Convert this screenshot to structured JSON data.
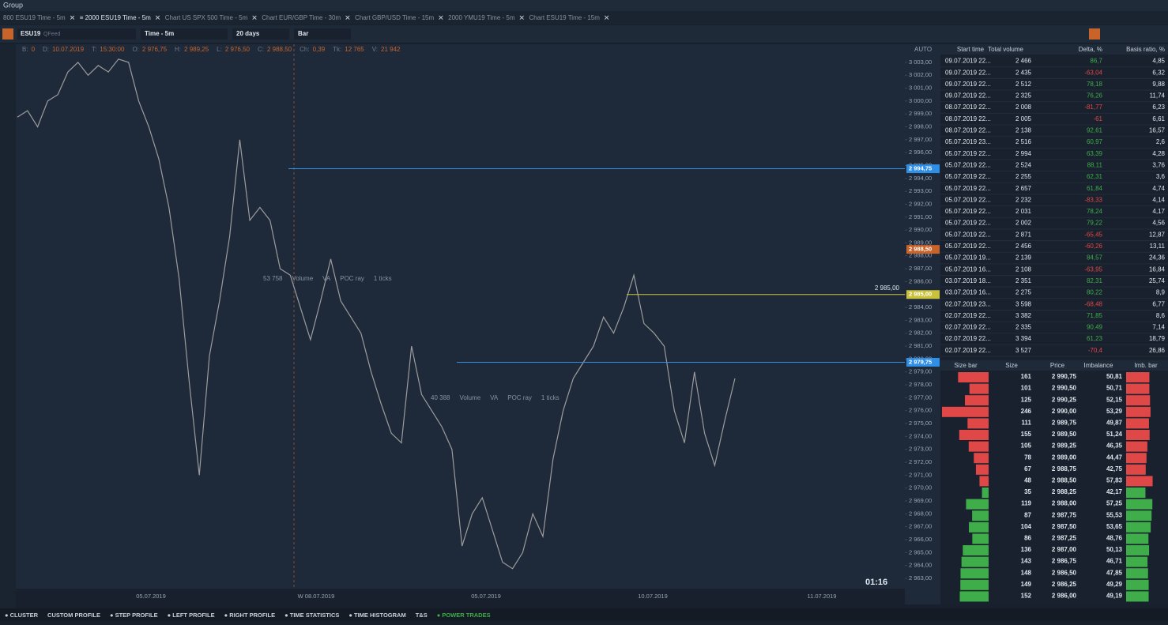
{
  "window": {
    "title": "Group"
  },
  "tabs": [
    "800 ESU19 Time - 5m",
    "≡ 2000 ESU19 Time - 5m",
    "Chart US SPX 500 Time - 5m",
    "Chart EUR/GBP Time - 30m",
    "Chart GBP/USD Time - 15m",
    "2000 YMU19 Time - 5m",
    "Chart ESU19 Time - 15m"
  ],
  "toolbar": {
    "symbol": "ESU19",
    "feed": "QFeed",
    "timeframe": "Time - 5m",
    "period": "20 days",
    "chart_type": "Bar"
  },
  "ohlc": [
    [
      "B:",
      "0"
    ],
    [
      "D:",
      "10.07.2019"
    ],
    [
      "T:",
      "15:30:00"
    ],
    [
      "O:",
      "2 976,75"
    ],
    [
      "H:",
      "2 989,25"
    ],
    [
      "L:",
      "2 976,50"
    ],
    [
      "C:",
      "2 988,50"
    ],
    [
      "Ch:",
      "0,39"
    ],
    [
      "Tk:",
      "12 765"
    ],
    [
      "V:",
      "21 942"
    ]
  ],
  "chart": {
    "axis_mode": "AUTO",
    "timer": "01:16",
    "ylim": [
      2962.2,
      3004.4
    ],
    "yticks": [
      {
        "value": 3003,
        "label": "3 003,00"
      },
      {
        "value": 3002,
        "label": "3 002,00"
      },
      {
        "value": 3001,
        "label": "3 001,00"
      },
      {
        "value": 3000,
        "label": "3 000,00"
      },
      {
        "value": 2999,
        "label": "2 999,00"
      },
      {
        "value": 2998,
        "label": "2 998,00"
      },
      {
        "value": 2997,
        "label": "2 997,00"
      },
      {
        "value": 2996,
        "label": "2 996,00"
      },
      {
        "value": 2995,
        "label": "2 995,00"
      },
      {
        "value": 2994,
        "label": "2 994,00"
      },
      {
        "value": 2993,
        "label": "2 993,00"
      },
      {
        "value": 2992,
        "label": "2 992,00"
      },
      {
        "value": 2991,
        "label": "2 991,00"
      },
      {
        "value": 2990,
        "label": "2 990,00"
      },
      {
        "value": 2989,
        "label": "2 989,00"
      },
      {
        "value": 2988,
        "label": "2 988,00"
      },
      {
        "value": 2987,
        "label": "2 987,00"
      },
      {
        "value": 2986,
        "label": "2 986,00"
      },
      {
        "value": 2985,
        "label": "2 985,00"
      },
      {
        "value": 2984,
        "label": "2 984,00"
      },
      {
        "value": 2983,
        "label": "2 983,00"
      },
      {
        "value": 2982,
        "label": "2 982,00"
      },
      {
        "value": 2981,
        "label": "2 981,00"
      },
      {
        "value": 2980,
        "label": "2 980,00"
      },
      {
        "value": 2979,
        "label": "2 979,00"
      },
      {
        "value": 2978,
        "label": "2 978,00"
      },
      {
        "value": 2977,
        "label": "2 977,00"
      },
      {
        "value": 2976,
        "label": "2 976,00"
      },
      {
        "value": 2975,
        "label": "2 975,00"
      },
      {
        "value": 2974,
        "label": "2 974,00"
      },
      {
        "value": 2973,
        "label": "2 973,00"
      },
      {
        "value": 2972,
        "label": "2 972,00"
      },
      {
        "value": 2971,
        "label": "2 971,00"
      },
      {
        "value": 2970,
        "label": "2 970,00"
      },
      {
        "value": 2969,
        "label": "2 969,00"
      },
      {
        "value": 2968,
        "label": "2 968,00"
      },
      {
        "value": 2967,
        "label": "2 967,00"
      },
      {
        "value": 2966,
        "label": "2 966,00"
      },
      {
        "value": 2965,
        "label": "2 965,00"
      },
      {
        "value": 2964,
        "label": "2 964,00"
      },
      {
        "value": 2963,
        "label": "2 963,00"
      }
    ],
    "xticks": [
      "05.07.2019",
      "W 08.07.2019",
      "05.07.2019",
      "10.07.2019",
      "11.07.2019"
    ],
    "price_lines": [
      {
        "value": 2994.75,
        "label": "2 994,75",
        "color": "#2f8fe6"
      },
      {
        "value": 2988.5,
        "label": "2 988,50",
        "color": "#c8632a"
      },
      {
        "value": 2979.75,
        "label": "2 979,75",
        "color": "#2f8fe6"
      },
      {
        "value": 2985,
        "label": "2 985,00",
        "color": "#c9c23a"
      }
    ],
    "overlays": [
      [
        "53 758",
        "Volume",
        "VA",
        "POC ray",
        "1 ticks"
      ],
      [
        "40 388",
        "Volume",
        "VA",
        "POC ray",
        "1 ticks"
      ]
    ],
    "price": [
      2998.75,
      2999.25,
      2998,
      3000,
      3000.5,
      3002.25,
      3003,
      3002,
      3002.75,
      3002.25,
      3003.25,
      3003,
      3000,
      2998,
      2995.5,
      2991.75,
      2986.25,
      2978.25,
      2971,
      2980.25,
      2984.5,
      2989.5,
      2997,
      2990.75,
      2991.75,
      2990.75,
      2987,
      2986.5,
      2984,
      2981.5,
      2984.5,
      2987.75,
      2984.5,
      2983.25,
      2982,
      2979,
      2976.5,
      2974.25,
      2973.5,
      2981,
      2977.25,
      2976,
      2974.75,
      2973,
      2965.5,
      2968,
      2969.25,
      2966.75,
      2964.25,
      2963.75,
      2965,
      2968,
      2966.25,
      2972.25,
      2976,
      2978.5,
      2979.75,
      2981,
      2983.25,
      2982,
      2984,
      2986.5,
      2982.75,
      2982,
      2981,
      2976,
      2973.5,
      2979,
      2974.25,
      2971.75,
      2975.25,
      2978.5
    ]
  },
  "volume_table": {
    "columns": [
      "Start time",
      "Total volume",
      "Delta, %",
      "Basis ratio, %"
    ],
    "rows": [
      [
        "09.07.2019 22...",
        "2 466",
        "86,7",
        "4,85"
      ],
      [
        "09.07.2019 22...",
        "2 435",
        "-63,04",
        "6,32"
      ],
      [
        "09.07.2019 22...",
        "2 512",
        "78,18",
        "9,88"
      ],
      [
        "09.07.2019 22...",
        "2 325",
        "76,26",
        "11,74"
      ],
      [
        "08.07.2019 22...",
        "2 008",
        "-81,77",
        "6,23"
      ],
      [
        "08.07.2019 22...",
        "2 005",
        "-61",
        "6,61"
      ],
      [
        "08.07.2019 22...",
        "2 138",
        "92,61",
        "16,57"
      ],
      [
        "05.07.2019 23...",
        "2 516",
        "60,97",
        "2,6"
      ],
      [
        "05.07.2019 22...",
        "2 994",
        "63,39",
        "4,28"
      ],
      [
        "05.07.2019 22...",
        "2 524",
        "88,11",
        "3,76"
      ],
      [
        "05.07.2019 22...",
        "2 255",
        "62,31",
        "3,6"
      ],
      [
        "05.07.2019 22...",
        "2 657",
        "61,84",
        "4,74"
      ],
      [
        "05.07.2019 22...",
        "2 232",
        "-83,33",
        "4,14"
      ],
      [
        "05.07.2019 22...",
        "2 031",
        "78,24",
        "4,17"
      ],
      [
        "05.07.2019 22...",
        "2 002",
        "79,22",
        "4,56"
      ],
      [
        "05.07.2019 22...",
        "2 871",
        "-65,45",
        "12,87"
      ],
      [
        "05.07.2019 22...",
        "2 456",
        "-60,26",
        "13,11"
      ],
      [
        "05.07.2019 19...",
        "2 139",
        "84,57",
        "24,36"
      ],
      [
        "05.07.2019 16...",
        "2 108",
        "-63,95",
        "16,84"
      ],
      [
        "03.07.2019 18...",
        "2 351",
        "82,31",
        "25,74"
      ],
      [
        "03.07.2019 16...",
        "2 275",
        "80,22",
        "8,9"
      ],
      [
        "02.07.2019 23...",
        "3 598",
        "-68,48",
        "6,77"
      ],
      [
        "02.07.2019 22...",
        "3 382",
        "71,85",
        "8,6"
      ],
      [
        "02.07.2019 22...",
        "2 335",
        "90,49",
        "7,14"
      ],
      [
        "02.07.2019 22...",
        "3 394",
        "61,23",
        "18,79"
      ],
      [
        "02.07.2019 22...",
        "3 527",
        "-70,4",
        "26,86"
      ]
    ]
  },
  "profile_table": {
    "columns": [
      "Size bar",
      "Size",
      "Price",
      "Imbalance",
      "Imb. bar"
    ],
    "rows": [
      {
        "size": 161,
        "price": "2 990,75",
        "imbalance": {
          "value": 50.81,
          "label": "50,81"
        },
        "color": "#e04848"
      },
      {
        "size": 101,
        "price": "2 990,50",
        "imbalance": {
          "value": 50.71,
          "label": "50,71"
        },
        "color": "#e04848"
      },
      {
        "size": 125,
        "price": "2 990,25",
        "imbalance": {
          "value": 52.15,
          "label": "52,15"
        },
        "color": "#e04848"
      },
      {
        "size": 246,
        "price": "2 990,00",
        "imbalance": {
          "value": 53.29,
          "label": "53,29"
        },
        "color": "#e04848"
      },
      {
        "size": 111,
        "price": "2 989,75",
        "imbalance": {
          "value": 49.87,
          "label": "49,87"
        },
        "color": "#e04848"
      },
      {
        "size": 155,
        "price": "2 989,50",
        "imbalance": {
          "value": 51.24,
          "label": "51,24"
        },
        "color": "#e04848"
      },
      {
        "size": 105,
        "price": "2 989,25",
        "imbalance": {
          "value": 46.35,
          "label": "46,35"
        },
        "color": "#e04848"
      },
      {
        "size": 78,
        "price": "2 989,00",
        "imbalance": {
          "value": 44.47,
          "label": "44,47"
        },
        "color": "#e04848"
      },
      {
        "size": 67,
        "price": "2 988,75",
        "imbalance": {
          "value": 42.75,
          "label": "42,75"
        },
        "color": "#e04848"
      },
      {
        "size": 48,
        "price": "2 988,50",
        "imbalance": {
          "value": 57.83,
          "label": "57,83"
        },
        "color": "#e04848"
      },
      {
        "size": 35,
        "price": "2 988,25",
        "imbalance": {
          "value": 42.17,
          "label": "42,17"
        },
        "color": "#3fae4a"
      },
      {
        "size": 119,
        "price": "2 988,00",
        "imbalance": {
          "value": 57.25,
          "label": "57,25"
        },
        "color": "#3fae4a"
      },
      {
        "size": 87,
        "price": "2 987,75",
        "imbalance": {
          "value": 55.53,
          "label": "55,53"
        },
        "color": "#3fae4a"
      },
      {
        "size": 104,
        "price": "2 987,50",
        "imbalance": {
          "value": 53.65,
          "label": "53,65"
        },
        "color": "#3fae4a"
      },
      {
        "size": 86,
        "price": "2 987,25",
        "imbalance": {
          "value": 48.76,
          "label": "48,76"
        },
        "color": "#3fae4a"
      },
      {
        "size": 136,
        "price": "2 987,00",
        "imbalance": {
          "value": 50.13,
          "label": "50,13"
        },
        "color": "#3fae4a"
      },
      {
        "size": 143,
        "price": "2 986,75",
        "imbalance": {
          "value": 46.71,
          "label": "46,71"
        },
        "color": "#3fae4a"
      },
      {
        "size": 148,
        "price": "2 986,50",
        "imbalance": {
          "value": 47.85,
          "label": "47,85"
        },
        "color": "#3fae4a"
      },
      {
        "size": 149,
        "price": "2 986,25",
        "imbalance": {
          "value": 49.29,
          "label": "49,29"
        },
        "color": "#3fae4a"
      },
      {
        "size": 152,
        "price": "2 986,00",
        "imbalance": {
          "value": 49.19,
          "label": "49,19"
        },
        "color": "#3fae4a"
      }
    ]
  },
  "bottom_tabs": [
    "● CLUSTER",
    "CUSTOM PROFILE",
    "● STEP PROFILE",
    "● LEFT PROFILE",
    "● RIGHT PROFILE",
    "● TIME STATISTICS",
    "● TIME HISTOGRAM",
    "T&S",
    "● POWER TRADES"
  ]
}
